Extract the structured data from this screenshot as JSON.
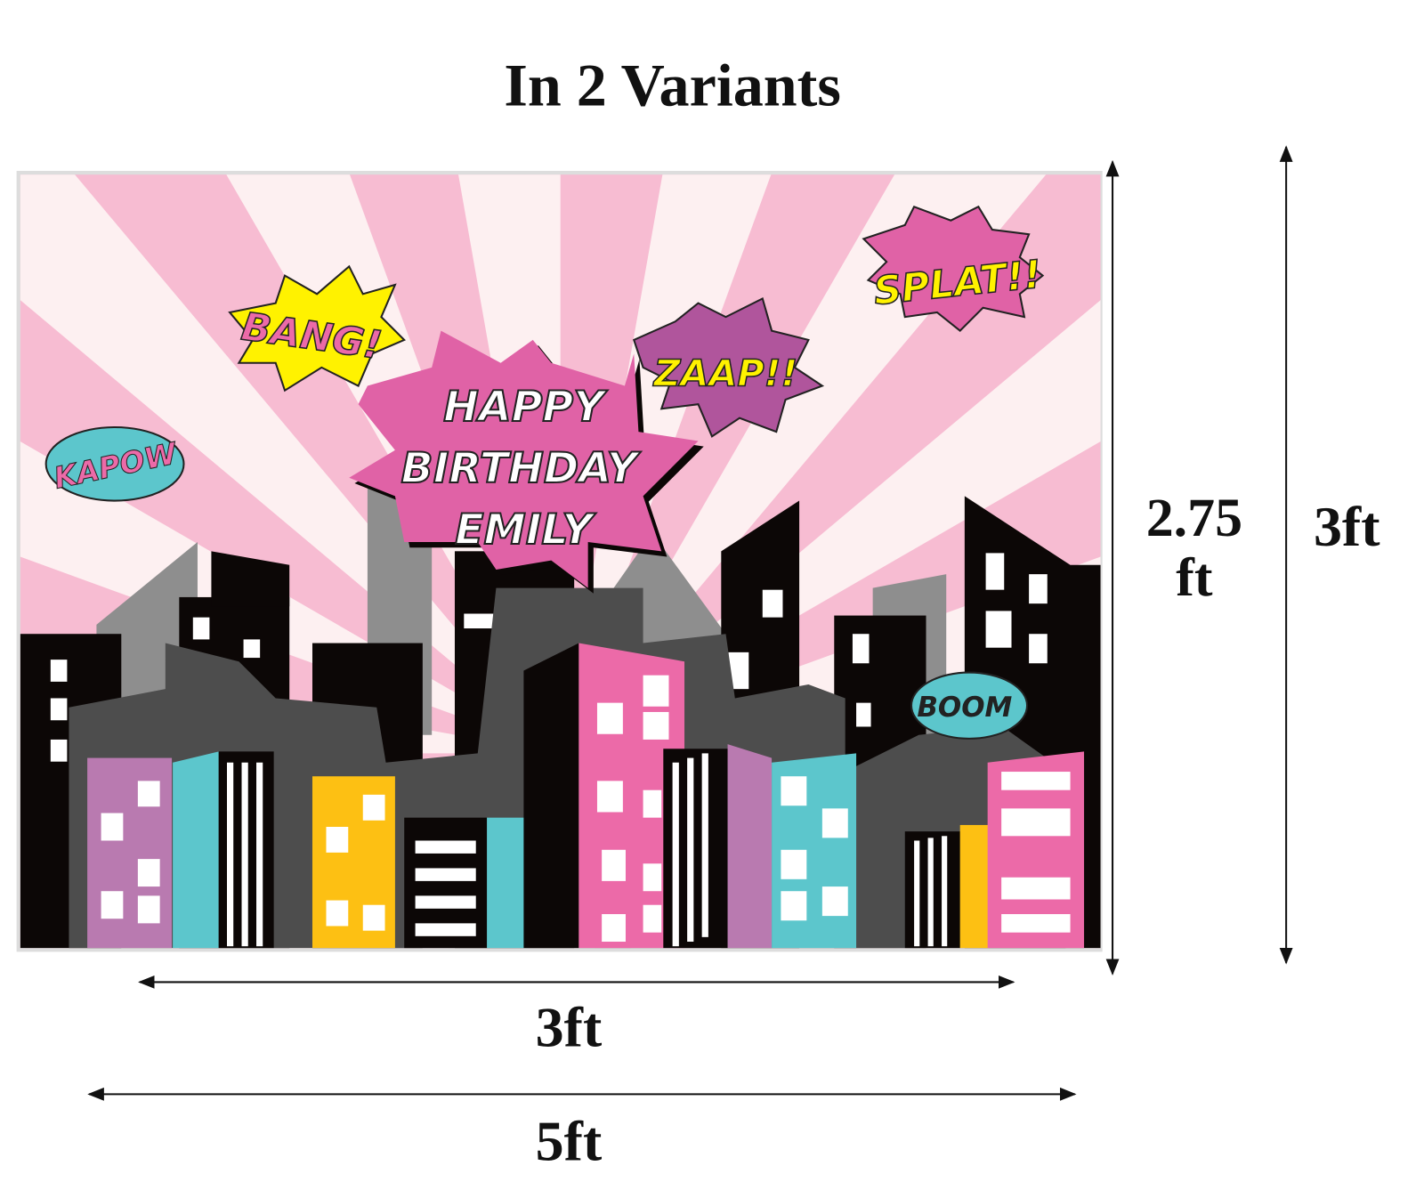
{
  "title": "In 2 Variants",
  "banner": {
    "greeting": [
      "HAPPY",
      "BIRTHDAY",
      "EMILY"
    ],
    "bursts": {
      "bang": "BANG!",
      "zaap": "ZAAP!!",
      "splat": "SPLAT!!",
      "kapow": "KAPOW",
      "boom": "BOOM"
    }
  },
  "dimensions": {
    "height_small": [
      "2.75",
      "ft"
    ],
    "height_large": "3ft",
    "width_small": "3ft",
    "width_large": "5ft"
  },
  "colors": {
    "pink": "#ec6aa8",
    "light_pink": "#f7bcd2",
    "purple": "#b97ab0",
    "teal": "#5cc6cc",
    "yellow": "#fdc013",
    "gray": "#8e8e8e",
    "dark_gray": "#4d4d4d",
    "black": "#0c0706"
  }
}
